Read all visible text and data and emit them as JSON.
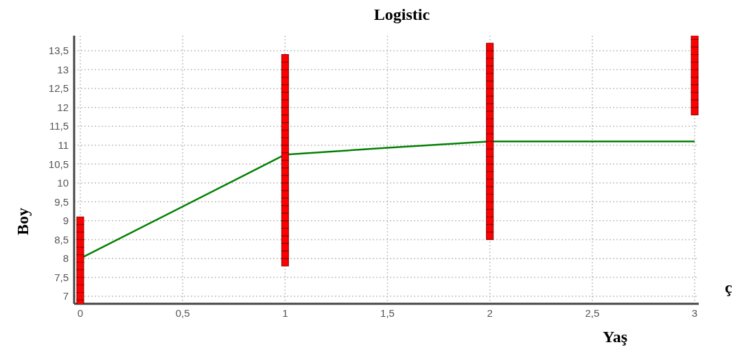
{
  "chart_data": {
    "type": "scatter",
    "title": "Logistic",
    "xlabel": "Yaş",
    "ylabel": "Boy",
    "annotations": [
      "ç"
    ],
    "xlim": [
      -0.03,
      3.02
    ],
    "xticks": [
      0,
      {
        "value": 0.5,
        "label": "0,5"
      },
      1,
      {
        "value": 1.5,
        "label": "1,5"
      },
      2,
      {
        "value": 2.5,
        "label": "2,5"
      },
      3
    ],
    "ylim": [
      6.8,
      13.9
    ],
    "yticks": [
      7,
      {
        "value": 7.5,
        "label": "7,5"
      },
      8,
      {
        "value": 8.5,
        "label": "8,5"
      },
      9,
      {
        "value": 9.5,
        "label": "9,5"
      },
      10,
      {
        "value": 10.5,
        "label": "10,5"
      },
      11,
      {
        "value": 11.5,
        "label": "11,5"
      },
      12,
      {
        "value": 12.5,
        "label": "12,5"
      },
      13,
      {
        "value": 13.5,
        "label": "13,5"
      }
    ],
    "grid": true,
    "marker": "square",
    "series": [
      {
        "color": "#ff0000",
        "x": [
          0,
          0,
          0,
          0,
          0,
          0,
          0,
          0,
          0,
          0,
          0,
          0,
          1,
          1,
          1,
          1,
          1,
          1,
          1,
          1,
          1,
          1,
          1,
          1,
          1,
          1,
          1,
          1,
          1,
          1,
          1,
          1,
          1,
          1,
          1,
          1,
          1,
          1,
          1,
          1,
          2,
          2,
          2,
          2,
          2,
          2,
          2,
          2,
          2,
          2,
          2,
          2,
          2,
          2,
          2,
          2,
          2,
          2,
          2,
          2,
          2,
          2,
          2,
          2,
          2,
          2,
          3,
          3,
          3,
          3,
          3,
          3,
          3,
          3,
          3,
          3,
          3
        ],
        "values": [
          6.8,
          7.0,
          7.2,
          7.4,
          7.6,
          7.8,
          8.0,
          8.2,
          8.4,
          8.6,
          8.8,
          9.0,
          7.9,
          8.1,
          8.3,
          8.5,
          8.7,
          8.9,
          9.1,
          9.3,
          9.5,
          9.7,
          9.9,
          10.1,
          10.3,
          10.5,
          10.7,
          10.9,
          11.1,
          11.3,
          11.5,
          11.7,
          11.9,
          12.1,
          12.3,
          12.5,
          12.7,
          12.9,
          13.1,
          13.3,
          8.6,
          8.8,
          9.0,
          9.2,
          9.4,
          9.6,
          9.8,
          10.0,
          10.2,
          10.4,
          10.6,
          10.8,
          11.0,
          11.2,
          11.4,
          11.6,
          11.8,
          12.0,
          12.2,
          12.4,
          12.6,
          12.8,
          13.0,
          13.2,
          13.4,
          13.6,
          11.9,
          12.1,
          12.3,
          12.5,
          12.7,
          12.9,
          13.1,
          13.3,
          13.5,
          13.7,
          13.9
        ]
      },
      {
        "type": "line",
        "color": "#008000",
        "marker": "none",
        "x": [
          0,
          1,
          1.5,
          2,
          3
        ],
        "values": [
          8.0,
          10.75,
          10.93,
          11.1,
          11.1
        ]
      }
    ]
  }
}
